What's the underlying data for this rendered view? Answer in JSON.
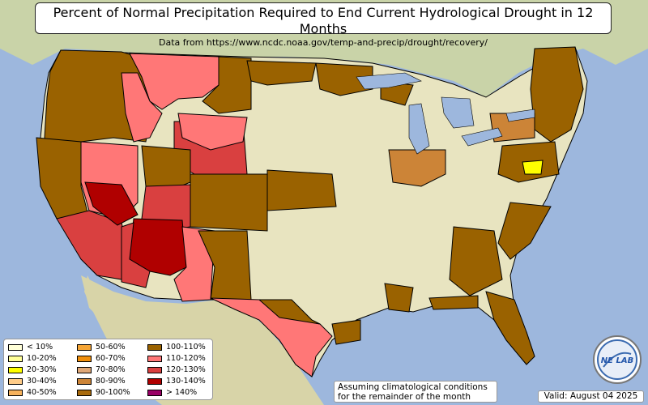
{
  "title": "Percent of Normal Precipitation Required to End Current Hydrological Drought in 12 Months",
  "subtitle": "Data from https://www.ncdc.noaa.gov/temp-and-precip/drought/recovery/",
  "legend": [
    {
      "label": "< 10%",
      "color": "#ffffd8"
    },
    {
      "label": "10-20%",
      "color": "#ffff99"
    },
    {
      "label": "20-30%",
      "color": "#ffff00"
    },
    {
      "label": "30-40%",
      "color": "#ffcc88"
    },
    {
      "label": "40-50%",
      "color": "#f7b25c"
    },
    {
      "label": "50-60%",
      "color": "#f5a536"
    },
    {
      "label": "60-70%",
      "color": "#f08f0c"
    },
    {
      "label": "70-80%",
      "color": "#e0a878"
    },
    {
      "label": "80-90%",
      "color": "#cc8437"
    },
    {
      "label": "90-100%",
      "color": "#a86a0c"
    },
    {
      "label": "100-110%",
      "color": "#9a6200"
    },
    {
      "label": "110-120%",
      "color": "#ff7777"
    },
    {
      "label": "120-130%",
      "color": "#d94040"
    },
    {
      "label": "130-140%",
      "color": "#b00000"
    },
    {
      "label": "> 140%",
      "color": "#990066"
    }
  ],
  "note": [
    "Assuming climatological conditions",
    "for the remainder of the month"
  ],
  "valid": "Valid: August 04 2025",
  "logo_text": "NE LAB",
  "colors": {
    "ocean": "#9db7dd",
    "land_us": "#e8e4c0",
    "land_other": "#cfd7b0",
    "state_border": "#ffffff"
  }
}
